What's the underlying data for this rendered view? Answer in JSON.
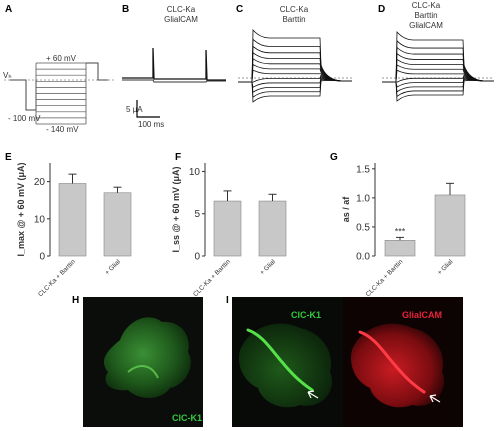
{
  "panels": {
    "A": {
      "label": "A",
      "v_high": "+ 60 mV",
      "v_rest": "Vₕ",
      "v_low_left": "- 100 mV",
      "v_low_bottom": "- 140 mV"
    },
    "B": {
      "label": "B",
      "title_l1": "CLC-Ka",
      "title_l2": "GlialCAM",
      "scale_y": "5 μA",
      "scale_x": "100 ms"
    },
    "C": {
      "label": "C",
      "title_l1": "CLC-Ka",
      "title_l2": "Barttin"
    },
    "D": {
      "label": "D",
      "title_l1": "CLC-Ka",
      "title_l2": "Barttin",
      "title_l3": "GlialCAM"
    },
    "E": {
      "label": "E"
    },
    "F": {
      "label": "F"
    },
    "G": {
      "label": "G",
      "significance": "***"
    },
    "H": {
      "label": "H",
      "stain": "ClC-K1",
      "stain_color": "#36c940"
    },
    "I": {
      "label": "I",
      "stain_left": "ClC-K1",
      "stain_right": "GlialCAM",
      "stain_left_color": "#36c940",
      "stain_right_color": "#e8233a"
    }
  },
  "chart_data": [
    {
      "panel": "E",
      "type": "bar",
      "categories": [
        "CLC-Ka + Barttin",
        "+ Glial"
      ],
      "values": [
        19.5,
        17.0
      ],
      "errors": [
        2.5,
        1.5
      ],
      "ylabel": "I_max @ + 60 mV (μA)",
      "ylim": [
        0,
        25
      ],
      "yticks": [
        "0",
        "10",
        "20"
      ],
      "bar_color": "#c8c8c8"
    },
    {
      "panel": "F",
      "type": "bar",
      "categories": [
        "CLC-Ka + Barttin",
        "+ Glial"
      ],
      "values": [
        6.5,
        6.5
      ],
      "errors": [
        1.2,
        0.8
      ],
      "ylabel": "I_ss @ + 60 mV (μA)",
      "ylim": [
        0,
        11
      ],
      "yticks": [
        "0",
        "5",
        "10"
      ],
      "bar_color": "#c8c8c8"
    },
    {
      "panel": "G",
      "type": "bar",
      "categories": [
        "CLC-Ka + Barttin",
        "+ Glial"
      ],
      "values": [
        0.27,
        1.05
      ],
      "errors": [
        0.05,
        0.2
      ],
      "ylabel": "as / af",
      "ylim": [
        0,
        1.6
      ],
      "yticks": [
        "0.0",
        "0.5",
        "1.0",
        "1.5"
      ],
      "bar_color": "#c8c8c8"
    }
  ]
}
